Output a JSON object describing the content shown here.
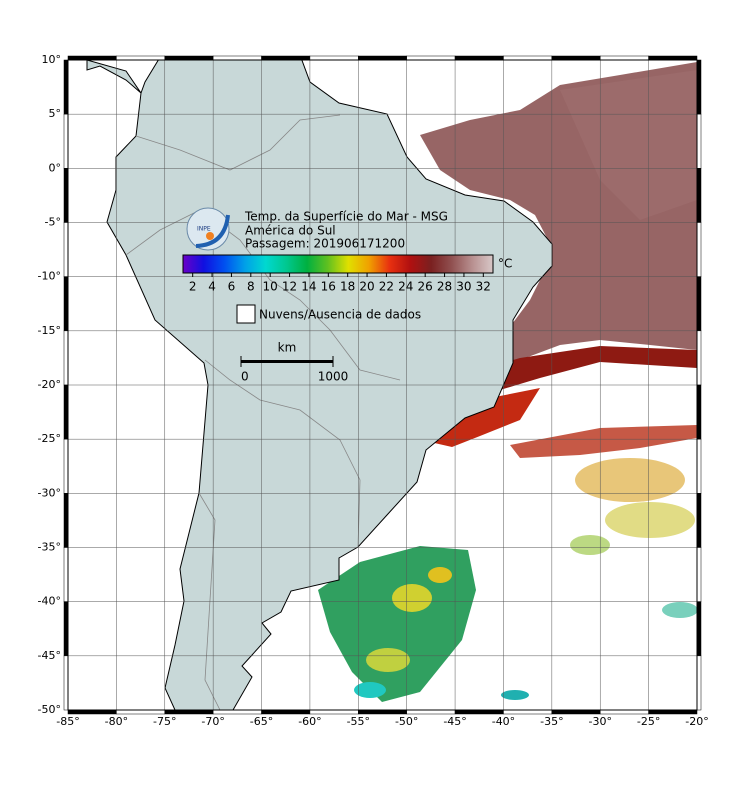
{
  "map": {
    "title": "Temp. da Superfície do Mar - MSG",
    "subtitle": "América do Sul",
    "pass": "Passagem: 201906171200",
    "logo": "INPE",
    "colorbar": {
      "range": [
        1,
        33
      ],
      "ticks": [
        2,
        4,
        6,
        8,
        10,
        12,
        14,
        16,
        18,
        20,
        22,
        24,
        26,
        28,
        30,
        32
      ],
      "unit": "°C",
      "colors": [
        "#6a00c8",
        "#1010e0",
        "#0050f0",
        "#00a0e8",
        "#00d8d0",
        "#00c890",
        "#00b040",
        "#60c020",
        "#e0e000",
        "#f0a000",
        "#e83010",
        "#b01010",
        "#7a2020",
        "#905050",
        "#b89090",
        "#d8c8c8"
      ]
    },
    "legend": "Nuvens/Ausencia de dados",
    "scale": {
      "unit": "km",
      "ticks": [
        0,
        1000
      ]
    },
    "xlim": [
      -85,
      -20
    ],
    "ylim": [
      -50,
      10
    ],
    "xticks": [
      {
        "value": -85,
        "label": "-85°"
      },
      {
        "value": -80,
        "label": "-80°"
      },
      {
        "value": -75,
        "label": "-75°"
      },
      {
        "value": -70,
        "label": "-70°"
      },
      {
        "value": -65,
        "label": "-65°"
      },
      {
        "value": -60,
        "label": "-60°"
      },
      {
        "value": -55,
        "label": "-55°"
      },
      {
        "value": -50,
        "label": "-50°"
      },
      {
        "value": -45,
        "label": "-45°"
      },
      {
        "value": -40,
        "label": "-40°"
      },
      {
        "value": -35,
        "label": "-35°"
      },
      {
        "value": -30,
        "label": "-30°"
      },
      {
        "value": -25,
        "label": "-25°"
      },
      {
        "value": -20,
        "label": "-20°"
      }
    ],
    "yticks": [
      {
        "value": 10,
        "label": "10°"
      },
      {
        "value": 5,
        "label": "5°"
      },
      {
        "value": 0,
        "label": "0°"
      },
      {
        "value": -5,
        "label": "-5°"
      },
      {
        "value": -10,
        "label": "-10°"
      },
      {
        "value": -15,
        "label": "-15°"
      },
      {
        "value": -20,
        "label": "-20°"
      },
      {
        "value": -25,
        "label": "-25°"
      },
      {
        "value": -30,
        "label": "-30°"
      },
      {
        "value": -35,
        "label": "-35°"
      },
      {
        "value": -40,
        "label": "-40°"
      },
      {
        "value": -45,
        "label": "-45°"
      },
      {
        "value": -50,
        "label": "-50°"
      }
    ]
  }
}
